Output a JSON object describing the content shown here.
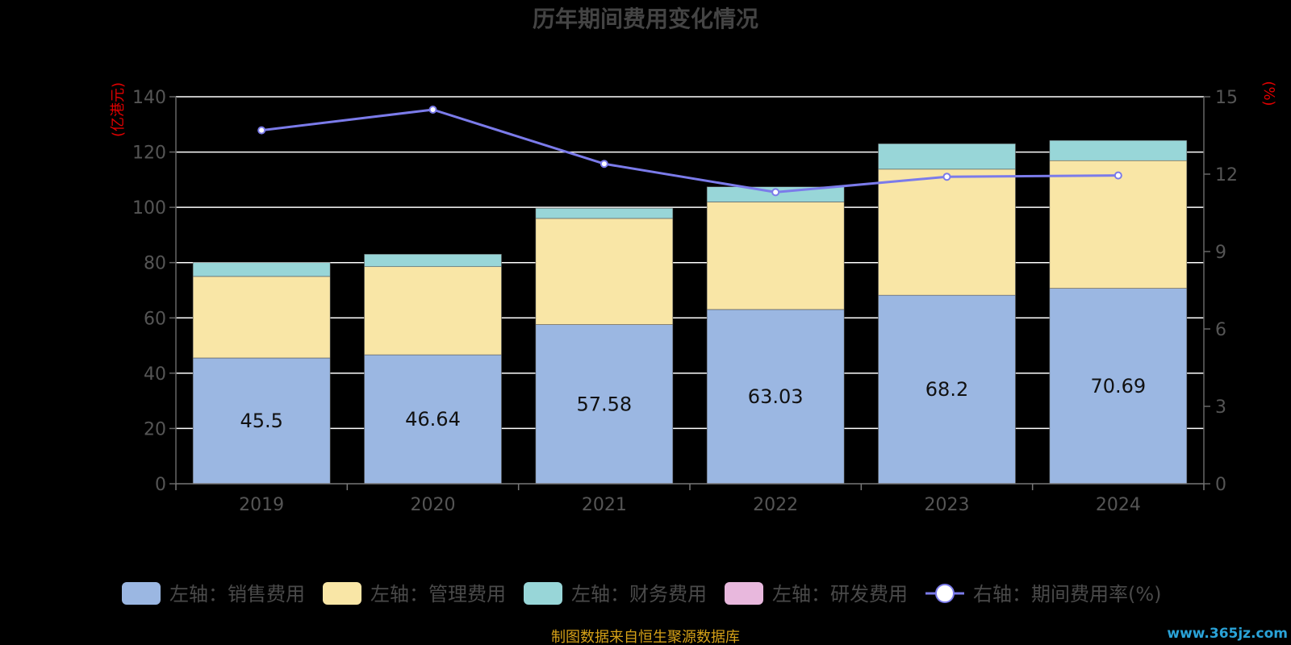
{
  "chart_data": {
    "type": "bar",
    "title": "历年期间费用变化情况",
    "categories": [
      "2019",
      "2020",
      "2021",
      "2022",
      "2023",
      "2024"
    ],
    "left_axis": {
      "unit": "(亿港元)",
      "ylim": [
        0,
        140
      ],
      "ticks": [
        "0",
        "20",
        "40",
        "60",
        "80",
        "100",
        "120",
        "140"
      ]
    },
    "right_axis": {
      "unit": "(%)",
      "ylim": [
        0,
        15
      ],
      "ticks": [
        "0",
        "3",
        "6",
        "9",
        "12",
        "15"
      ]
    },
    "series": [
      {
        "name": "左轴：销售费用",
        "type": "bar",
        "stack": "left",
        "color": "#9bb7e2",
        "values": [
          45.5,
          46.64,
          57.58,
          63.03,
          68.2,
          70.69
        ],
        "labels": [
          "45.5",
          "46.64",
          "57.58",
          "63.03",
          "68.2",
          "70.69"
        ]
      },
      {
        "name": "左轴：管理费用",
        "type": "bar",
        "stack": "left",
        "color": "#f9e6a6",
        "values": [
          29.5,
          31.9,
          38.4,
          38.9,
          45.6,
          46.2
        ]
      },
      {
        "name": "左轴：财务费用",
        "type": "bar",
        "stack": "left",
        "color": "#98d6d8",
        "values": [
          5.0,
          4.5,
          3.7,
          5.5,
          9.2,
          7.3
        ]
      },
      {
        "name": "左轴：研发费用",
        "type": "bar",
        "stack": "left",
        "color": "#e8b8dd",
        "values": [
          0,
          0,
          0,
          0,
          0,
          0
        ]
      },
      {
        "name": "右轴：期间费用率(%)",
        "type": "line",
        "axis": "right",
        "color": "#7b7bea",
        "values": [
          13.7,
          14.5,
          12.4,
          11.3,
          11.9,
          11.95
        ]
      }
    ],
    "grid": true,
    "legend_position": "bottom"
  },
  "footer": {
    "source": "制图数据来自恒生聚源数据库",
    "watermark": "www.365jz.com"
  }
}
